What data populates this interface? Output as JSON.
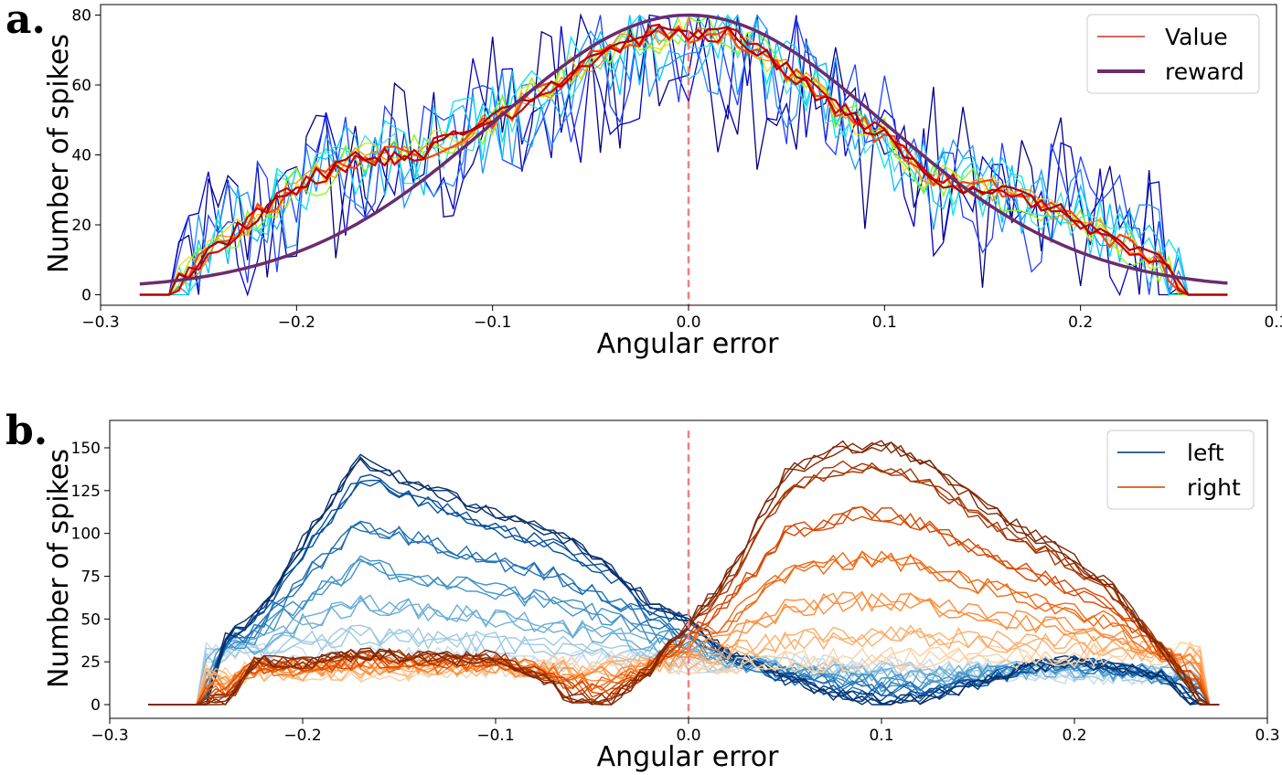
{
  "chart_data": [
    {
      "panel_label": "a.",
      "type": "line",
      "xlabel": "Angular error",
      "ylabel": "Number of spikes",
      "xlim": [
        -0.3,
        0.3
      ],
      "ylim": [
        -3,
        83
      ],
      "xticks": [
        -0.3,
        -0.2,
        -0.1,
        0.0,
        0.1,
        0.2,
        0.3
      ],
      "xtick_labels": [
        "−0.3",
        "−0.2",
        "−0.1",
        "0.0",
        "0.1",
        "0.2",
        "0.3"
      ],
      "yticks": [
        0,
        20,
        40,
        60,
        80
      ],
      "ytick_labels": [
        "0",
        "20",
        "40",
        "60",
        "80"
      ],
      "vline": {
        "x": 0.0,
        "color": "#f08080",
        "style": "dashed"
      },
      "legend": {
        "position": "top-right",
        "entries": [
          {
            "label": "Value",
            "color": "#c0392b",
            "width": "thin"
          },
          {
            "label": "reward",
            "color": "#6a2c70",
            "width": "thick"
          }
        ]
      },
      "reward_curve": {
        "color": "#6a2c70",
        "x_range": [
          -0.28,
          0.275
        ],
        "peak": 80,
        "center": 0.0,
        "sigma": 0.1,
        "floor": 1.5
      },
      "value_curve_points": {
        "x": [
          -0.28,
          -0.265,
          -0.25,
          -0.23,
          -0.2,
          -0.17,
          -0.14,
          -0.12,
          -0.1,
          -0.08,
          -0.06,
          -0.04,
          -0.02,
          0.0,
          0.02,
          0.04,
          0.06,
          0.08,
          0.1,
          0.12,
          0.14,
          0.16,
          0.18,
          0.2,
          0.22,
          0.24,
          0.255,
          0.275
        ],
        "y": [
          0,
          1,
          9,
          19,
          31,
          39,
          40,
          45,
          50,
          56,
          64,
          70,
          75,
          74,
          75,
          68,
          60,
          52,
          45,
          35,
          31,
          30,
          26,
          21,
          15,
          9,
          0,
          0
        ]
      },
      "series_colors": [
        "#00008b",
        "#0000cd",
        "#1f3fff",
        "#1e90ff",
        "#00bfff",
        "#00e5ee",
        "#40e0d0",
        "#7fff00",
        "#ffd700",
        "#ff8c00",
        "#ff4500",
        "#d40000",
        "#b00000"
      ]
    },
    {
      "panel_label": "b.",
      "type": "line",
      "xlabel": "Angular error",
      "ylabel": "Number of spikes",
      "xlim": [
        -0.3,
        0.3
      ],
      "ylim": [
        -8,
        166
      ],
      "xticks": [
        -0.3,
        -0.2,
        -0.1,
        0.0,
        0.1,
        0.2,
        0.3
      ],
      "xtick_labels": [
        "−0.3",
        "−0.2",
        "−0.1",
        "0.0",
        "0.1",
        "0.2",
        "0.3"
      ],
      "yticks": [
        0,
        25,
        50,
        75,
        100,
        125,
        150
      ],
      "ytick_labels": [
        "0",
        "25",
        "50",
        "75",
        "100",
        "125",
        "150"
      ],
      "vline": {
        "x": 0.0,
        "color": "#f08080",
        "style": "dashed"
      },
      "legend": {
        "position": "top-right",
        "entries": [
          {
            "label": "left",
            "color": "#1f4e8c"
          },
          {
            "label": "right",
            "color": "#d95f0e"
          }
        ]
      },
      "left_curve_points": {
        "x": [
          -0.28,
          -0.25,
          -0.24,
          -0.225,
          -0.2,
          -0.17,
          -0.15,
          -0.12,
          -0.09,
          -0.07,
          -0.04,
          -0.02,
          0.0,
          0.02,
          0.05,
          0.08,
          0.1,
          0.12,
          0.15,
          0.18,
          0.2,
          0.23,
          0.25,
          0.26,
          0.275
        ],
        "y": [
          0,
          0,
          38,
          50,
          95,
          143,
          133,
          120,
          107,
          100,
          80,
          60,
          50,
          30,
          15,
          5,
          2,
          3,
          12,
          23,
          25,
          20,
          15,
          2,
          0
        ]
      },
      "right_curve_points": {
        "x": [
          -0.28,
          -0.24,
          -0.225,
          -0.2,
          -0.17,
          -0.14,
          -0.12,
          -0.1,
          -0.08,
          -0.06,
          -0.04,
          -0.02,
          0.0,
          0.02,
          0.05,
          0.08,
          0.1,
          0.12,
          0.15,
          0.18,
          0.2,
          0.22,
          0.24,
          0.26,
          0.265,
          0.275
        ],
        "y": [
          0,
          0,
          25,
          24,
          30,
          28,
          27,
          29,
          18,
          3,
          2,
          20,
          48,
          75,
          135,
          150,
          152,
          143,
          118,
          98,
          85,
          68,
          40,
          10,
          0,
          0
        ]
      },
      "left_colors": [
        "#c6dbef",
        "#9ecae1",
        "#6baed6",
        "#4292c6",
        "#2171b5",
        "#08519c",
        "#08306b"
      ],
      "right_colors": [
        "#fdd0a2",
        "#fdae6b",
        "#fd8d3c",
        "#f16913",
        "#d94801",
        "#a63603",
        "#7f2704"
      ]
    }
  ]
}
